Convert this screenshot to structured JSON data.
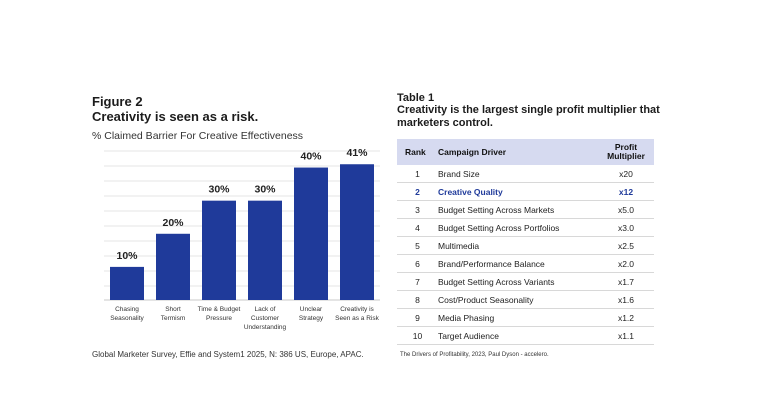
{
  "figure": {
    "label": "Figure 2",
    "title": "Creativity is seen as a risk.",
    "subtitle": "% Claimed Barrier For Creative Effectiveness",
    "source": "Global Marketer Survey, Effie and System1 2025, N: 386 US, Europe, APAC."
  },
  "chart_data": {
    "type": "bar",
    "title": "Creativity is seen as a risk.",
    "subtitle": "% Claimed Barrier For Creative Effectiveness",
    "categories": [
      [
        "Chasing",
        "Seasonality"
      ],
      [
        "Short",
        "Termism"
      ],
      [
        "Time & Budget",
        "Pressure"
      ],
      [
        "Lack of",
        "Customer",
        "Understanding"
      ],
      [
        "Unclear",
        "Strategy"
      ],
      [
        "Creativity is",
        "Seen as a Risk"
      ]
    ],
    "values": [
      10,
      20,
      30,
      30,
      40,
      41
    ],
    "value_labels": [
      "10%",
      "20%",
      "30%",
      "30%",
      "40%",
      "41%"
    ],
    "ylim": [
      0,
      45
    ],
    "grid": true,
    "xlabel": "",
    "ylabel": "",
    "bar_color": "#1f3a9a",
    "grid_color": "#e6e6e6"
  },
  "table": {
    "label": "Table 1",
    "title": "Creativity is the largest single profit multiplier that marketers control.",
    "headers": {
      "rank": "Rank",
      "driver": "Campaign Driver",
      "multiplier_line1": "Profit",
      "multiplier_line2": "Multiplier"
    },
    "rows": [
      {
        "rank": "1",
        "driver": "Brand Size",
        "multiplier": "x20"
      },
      {
        "rank": "2",
        "driver": "Creative Quality",
        "multiplier": "x12"
      },
      {
        "rank": "3",
        "driver": "Budget Setting Across Markets",
        "multiplier": "x5.0"
      },
      {
        "rank": "4",
        "driver": "Budget Setting Across Portfolios",
        "multiplier": "x3.0"
      },
      {
        "rank": "5",
        "driver": "Multimedia",
        "multiplier": "x2.5"
      },
      {
        "rank": "6",
        "driver": "Brand/Performance Balance",
        "multiplier": "x2.0"
      },
      {
        "rank": "7",
        "driver": "Budget Setting Across Variants",
        "multiplier": "x1.7"
      },
      {
        "rank": "8",
        "driver": "Cost/Product Seasonality",
        "multiplier": "x1.6"
      },
      {
        "rank": "9",
        "driver": "Media Phasing",
        "multiplier": "x1.2"
      },
      {
        "rank": "10",
        "driver": "Target Audience",
        "multiplier": "x1.1"
      }
    ],
    "highlight_color": "#1f3a9a",
    "header_bg": "#d6daf0",
    "source": "The Drivers of Profitability, 2023, Paul Dyson - accelero."
  }
}
